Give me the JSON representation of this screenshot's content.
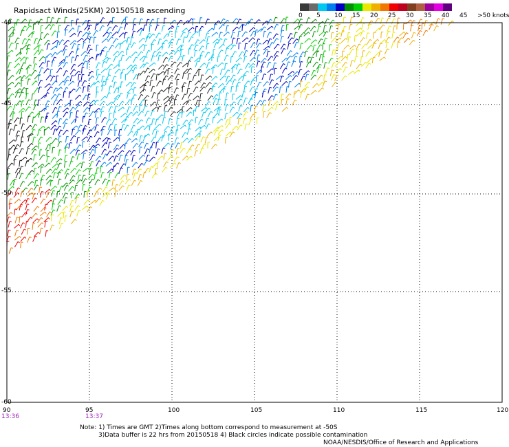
{
  "title": "Rapidsact Winds(25KM) 20150518 ascending",
  "legend": {
    "colors": [
      "#3a3a3a",
      "#6a6a6a",
      "#00c8f0",
      "#0080f0",
      "#0000c0",
      "#009000",
      "#00d000",
      "#e8e800",
      "#f0b000",
      "#f07800",
      "#f00000",
      "#c00020",
      "#804020",
      "#b06040",
      "#a000a0",
      "#e000e0",
      "#600080"
    ],
    "labels": [
      "0",
      "5",
      "10",
      "15",
      "20",
      "25",
      "30",
      "35",
      "40",
      "45",
      ">50 knots"
    ]
  },
  "map": {
    "lon_range": [
      90,
      120
    ],
    "lat_range": [
      -40,
      -60
    ],
    "lon_ticks": [
      "90",
      "95",
      "100",
      "105",
      "110",
      "115",
      "120"
    ],
    "lat_ticks": [
      "-40",
      "-45",
      "-50",
      "-55",
      "-60"
    ],
    "grid": "dotted"
  },
  "time_labels": [
    "13:36",
    "13:37"
  ],
  "notes": [
    "Note: 1) Times are GMT 2)Times along bottom correspond to measurement at -50S",
    "3)Data buffer is 22 hrs from 20150518 4) Black circles indicate possible contamination",
    "NOAA/NESDIS/Office of Research and Applications"
  ]
}
